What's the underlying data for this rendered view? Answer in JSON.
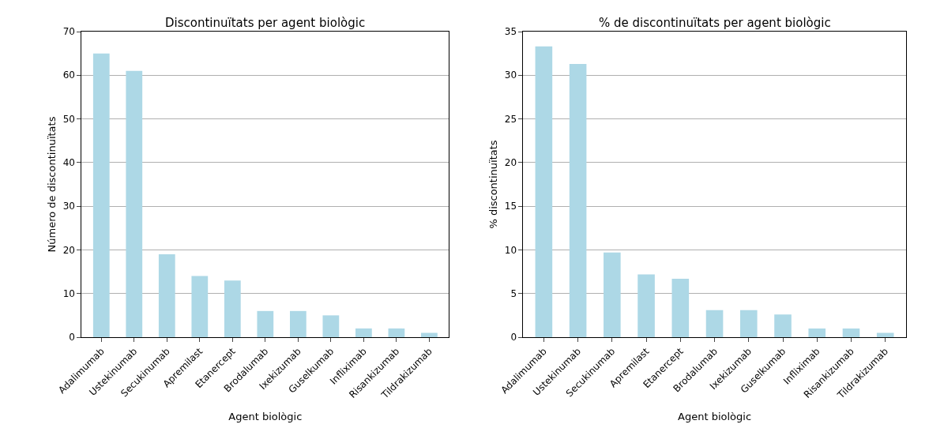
{
  "chart_data": [
    {
      "type": "bar",
      "title": "Discontinuïtats per agent biològic",
      "xlabel": "Agent biològic",
      "ylabel": "Número de discontinuïtats",
      "categories": [
        "Adalimumab",
        "Ustekinumab",
        "Secukinumab",
        "Apremilast",
        "Etanercept",
        "Brodalumab",
        "Ixekizumab",
        "Guselkumab",
        "Infliximab",
        "Risankizumab",
        "Tildrakizumab"
      ],
      "values": [
        65,
        61,
        19,
        14,
        13,
        6,
        6,
        5,
        2,
        2,
        1
      ],
      "color": "#add8e6",
      "ylim": [
        0,
        70
      ],
      "yticks": [
        0,
        10,
        20,
        30,
        40,
        50,
        60,
        70
      ],
      "grid": "y"
    },
    {
      "type": "bar",
      "title": "% de discontinuïtats per agent biològic",
      "xlabel": "Agent biològic",
      "ylabel": "% discontinuïtats",
      "categories": [
        "Adalimumab",
        "Ustekinumab",
        "Secukinumab",
        "Apremilast",
        "Etanercept",
        "Brodalumab",
        "Ixekizumab",
        "Guselkumab",
        "Infliximab",
        "Risankizumab",
        "Tildrakizumab"
      ],
      "values": [
        33.3,
        31.3,
        9.7,
        7.2,
        6.7,
        3.1,
        3.1,
        2.6,
        1.0,
        1.0,
        0.5
      ],
      "color": "#add8e6",
      "ylim": [
        0,
        35
      ],
      "yticks": [
        0,
        5,
        10,
        15,
        20,
        25,
        30,
        35
      ],
      "grid": "y"
    }
  ]
}
